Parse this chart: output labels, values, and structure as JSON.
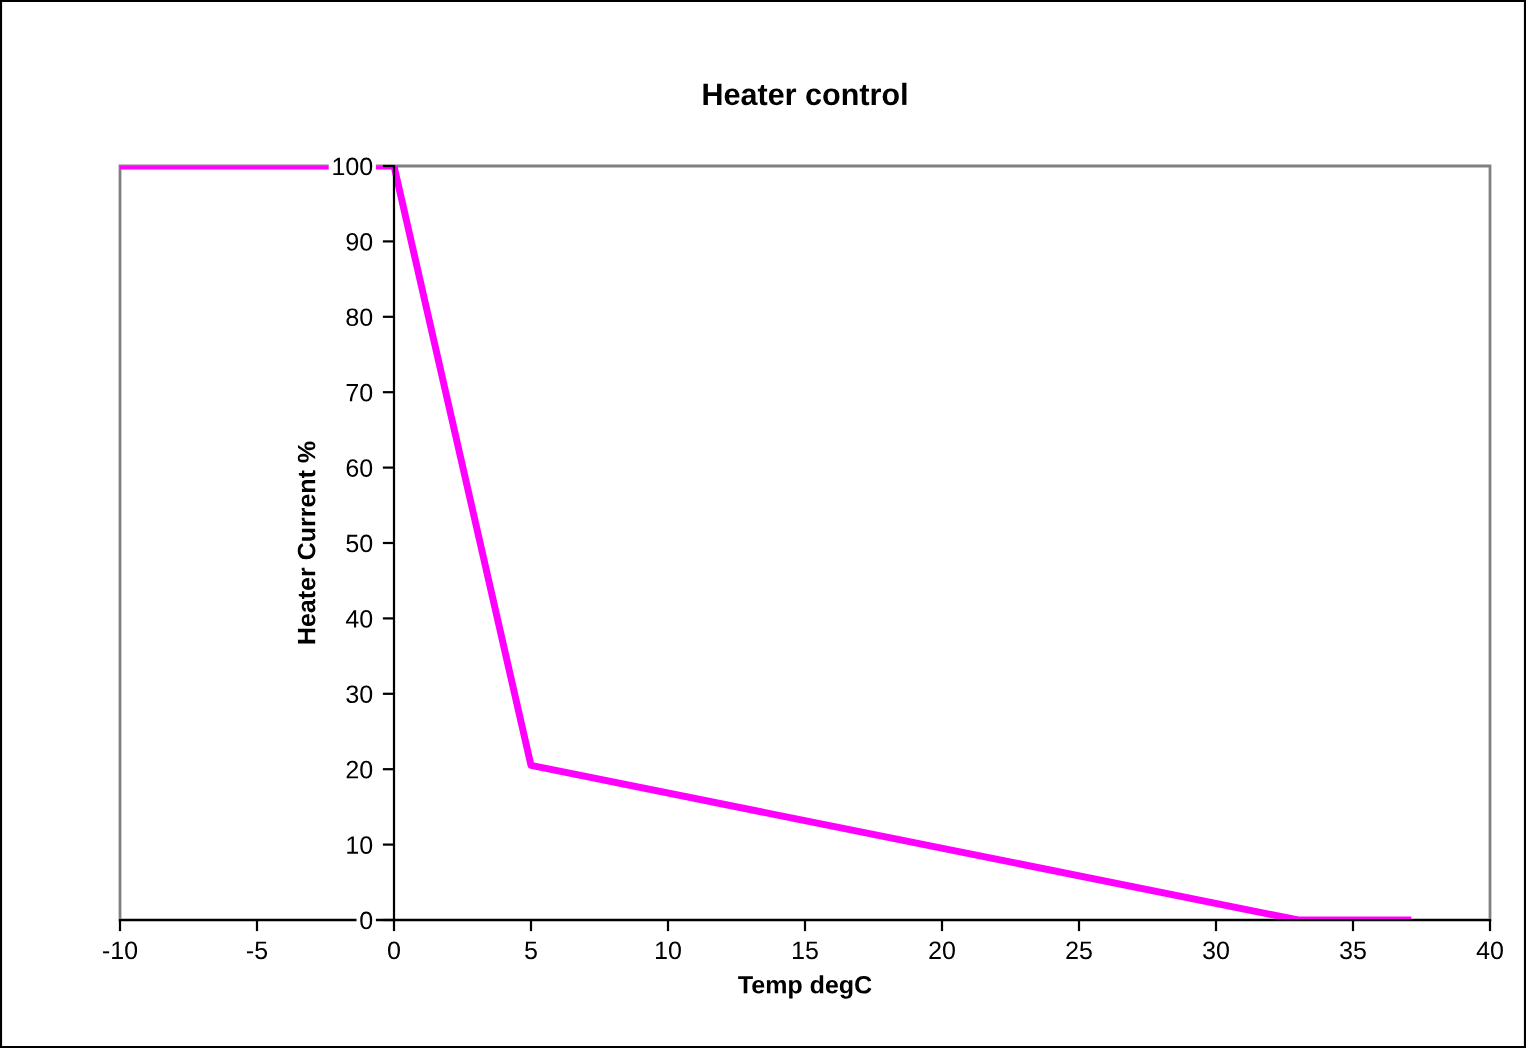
{
  "chart_data": {
    "type": "line",
    "title": "Heater control",
    "xlabel": "Temp degC",
    "ylabel": "Heater Current %",
    "series": [
      {
        "color": "#ff00ff",
        "x": [
          -10,
          0,
          5,
          33,
          37
        ],
        "values": [
          100,
          100,
          20.5,
          0,
          0
        ]
      }
    ],
    "xlim": [
      -10,
      40
    ],
    "ylim": [
      0,
      100
    ],
    "xticks": [
      -10,
      -5,
      0,
      5,
      10,
      15,
      20,
      25,
      30,
      35,
      40
    ],
    "yticks": [
      0,
      10,
      20,
      30,
      40,
      50,
      60,
      70,
      80,
      90,
      100
    ],
    "grid": false
  }
}
